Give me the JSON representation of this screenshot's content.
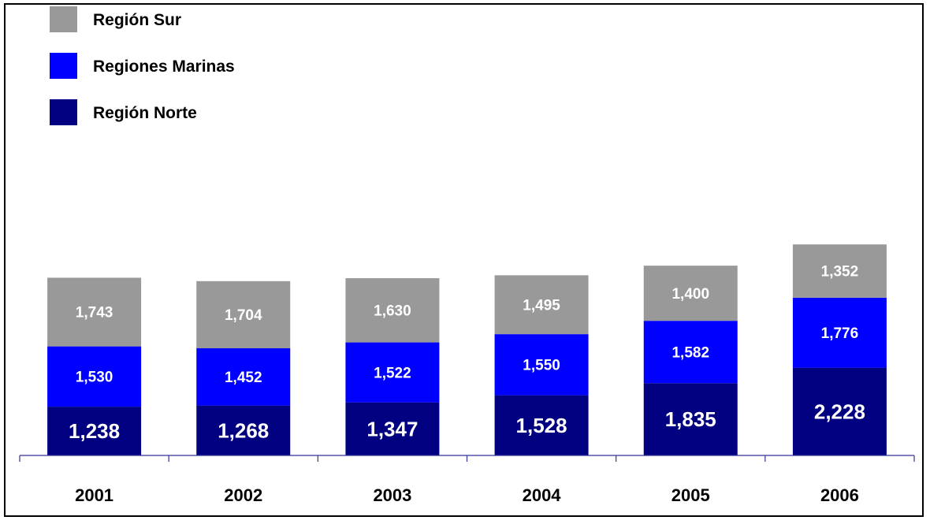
{
  "chart_data": {
    "type": "bar",
    "stacked": true,
    "categories": [
      "2001",
      "2002",
      "2003",
      "2004",
      "2005",
      "2006"
    ],
    "series": [
      {
        "name": "Región Norte",
        "color": "#000080",
        "values": [
          1238,
          1268,
          1347,
          1528,
          1835,
          2228
        ]
      },
      {
        "name": "Regiones Marinas",
        "color": "#0000ff",
        "values": [
          1530,
          1452,
          1522,
          1550,
          1582,
          1776
        ]
      },
      {
        "name": "Región Sur",
        "color": "#999999",
        "values": [
          1743,
          1704,
          1630,
          1495,
          1400,
          1352
        ]
      }
    ],
    "value_labels": [
      [
        "1,238",
        "1,268",
        "1,347",
        "1,528",
        "1,835",
        "2,228"
      ],
      [
        "1,530",
        "1,452",
        "1,522",
        "1,550",
        "1,582",
        "1,776"
      ],
      [
        "1,743",
        "1,704",
        "1,630",
        "1,495",
        "1,400",
        "1,352"
      ]
    ],
    "legend": {
      "position": "top-left",
      "order": [
        "Región Sur",
        "Regiones Marinas",
        "Región Norte"
      ]
    },
    "grid": false,
    "y_axis_visible": false
  }
}
